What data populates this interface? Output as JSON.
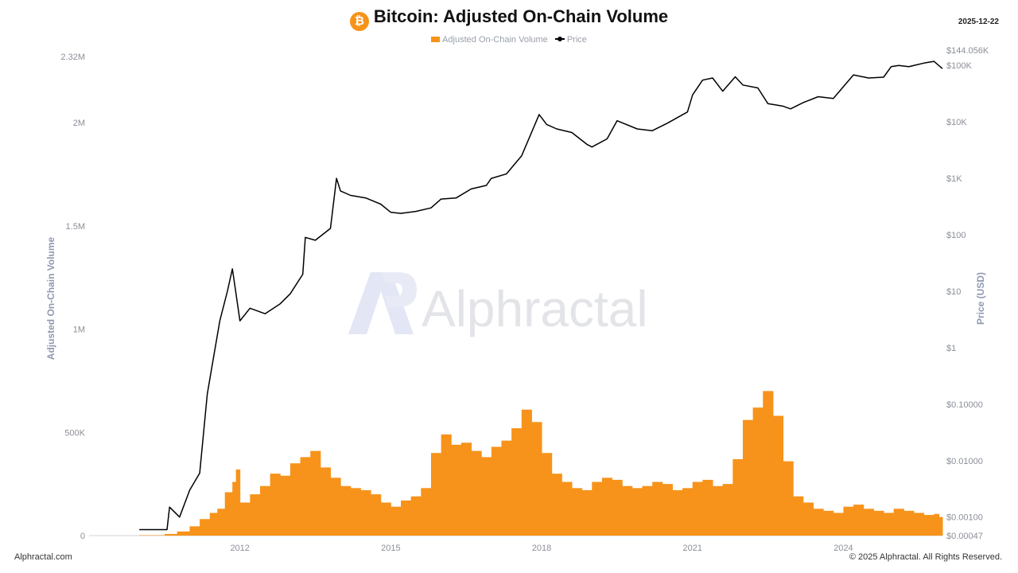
{
  "header": {
    "title": "Bitcoin: Adjusted On-Chain Volume",
    "date": "2025-12-22",
    "icon": "bitcoin-icon",
    "icon_glyph": "₿"
  },
  "watermark": {
    "text": "Alphractal"
  },
  "footer": {
    "left": "Alphractal.com",
    "right": "© 2025 Alphractal. All Rights Reserved."
  },
  "colors": {
    "volume": "#f7931a",
    "price": "#000000"
  },
  "chart_data": {
    "type": "bar",
    "title": "Bitcoin: Adjusted On-Chain Volume",
    "legend": {
      "placement": "top-center",
      "entries": [
        "Adjusted On-Chain Volume",
        "Price"
      ]
    },
    "grid": false,
    "x_range": [
      2009.0,
      2025.97
    ],
    "x_ticks": [
      "2012",
      "2015",
      "2018",
      "2021",
      "2024"
    ],
    "x_tick_values": [
      2012,
      2015,
      2018,
      2021,
      2024
    ],
    "y_left": {
      "label": "Adjusted On-Chain Volume",
      "range": [
        0,
        2320000
      ],
      "ticks": [
        {
          "value": 0,
          "label": "0"
        },
        {
          "value": 500000,
          "label": "500K"
        },
        {
          "value": 1000000,
          "label": "1M"
        },
        {
          "value": 1500000,
          "label": "1.5M"
        },
        {
          "value": 2000000,
          "label": "2M"
        },
        {
          "value": 2320000,
          "label": "2.32M"
        }
      ]
    },
    "y_right": {
      "label": "Price (USD)",
      "scale": "log",
      "range": [
        0.00047,
        144056
      ],
      "ticks": [
        {
          "value": 0.00047,
          "label": "$0.00047"
        },
        {
          "value": 0.001,
          "label": "$0.00100"
        },
        {
          "value": 0.01,
          "label": "$0.01000"
        },
        {
          "value": 0.1,
          "label": "$0.10000"
        },
        {
          "value": 1,
          "label": "$1"
        },
        {
          "value": 10,
          "label": "$10"
        },
        {
          "value": 100,
          "label": "$100"
        },
        {
          "value": 1000,
          "label": "$1K"
        },
        {
          "value": 10000,
          "label": "$10K"
        },
        {
          "value": 100000,
          "label": "$100K"
        },
        {
          "value": 144056,
          "label": "$144.056K"
        }
      ]
    },
    "series": [
      {
        "name": "Adjusted On-Chain Volume",
        "type": "bar",
        "axis": "left",
        "x": [
          2010.0,
          2010.5,
          2010.75,
          2011.0,
          2011.2,
          2011.4,
          2011.55,
          2011.7,
          2011.85,
          2011.92,
          2012.0,
          2012.2,
          2012.4,
          2012.6,
          2012.8,
          2013.0,
          2013.2,
          2013.4,
          2013.6,
          2013.8,
          2014.0,
          2014.2,
          2014.4,
          2014.6,
          2014.8,
          2015.0,
          2015.2,
          2015.4,
          2015.6,
          2015.8,
          2016.0,
          2016.2,
          2016.4,
          2016.6,
          2016.8,
          2017.0,
          2017.2,
          2017.4,
          2017.6,
          2017.8,
          2018.0,
          2018.2,
          2018.4,
          2018.6,
          2018.8,
          2019.0,
          2019.2,
          2019.4,
          2019.6,
          2019.8,
          2020.0,
          2020.2,
          2020.4,
          2020.6,
          2020.8,
          2021.0,
          2021.2,
          2021.4,
          2021.6,
          2021.8,
          2022.0,
          2022.2,
          2022.4,
          2022.6,
          2022.8,
          2023.0,
          2023.2,
          2023.4,
          2023.6,
          2023.8,
          2024.0,
          2024.2,
          2024.4,
          2024.6,
          2024.8,
          2025.0,
          2025.2,
          2025.4,
          2025.6,
          2025.8,
          2025.9
        ],
        "values": [
          2000,
          8000,
          20000,
          45000,
          80000,
          110000,
          130000,
          210000,
          260000,
          320000,
          160000,
          200000,
          240000,
          300000,
          290000,
          350000,
          380000,
          410000,
          330000,
          280000,
          240000,
          230000,
          220000,
          200000,
          160000,
          140000,
          170000,
          190000,
          230000,
          400000,
          490000,
          440000,
          450000,
          410000,
          380000,
          430000,
          460000,
          520000,
          610000,
          550000,
          400000,
          300000,
          260000,
          230000,
          220000,
          260000,
          280000,
          270000,
          240000,
          230000,
          240000,
          260000,
          250000,
          220000,
          230000,
          260000,
          270000,
          240000,
          250000,
          370000,
          560000,
          620000,
          700000,
          580000,
          360000,
          190000,
          160000,
          130000,
          120000,
          110000,
          140000,
          150000,
          130000,
          120000,
          110000,
          130000,
          120000,
          110000,
          100000,
          105000,
          90000
        ]
      },
      {
        "name": "Price",
        "type": "line",
        "axis": "right",
        "x": [
          2010.0,
          2010.2,
          2010.35,
          2010.55,
          2010.6,
          2010.8,
          2011.0,
          2011.2,
          2011.35,
          2011.45,
          2011.6,
          2011.75,
          2011.85,
          2012.0,
          2012.2,
          2012.5,
          2012.8,
          2013.0,
          2013.25,
          2013.3,
          2013.5,
          2013.8,
          2013.92,
          2014.0,
          2014.2,
          2014.5,
          2014.8,
          2015.0,
          2015.2,
          2015.5,
          2015.8,
          2016.0,
          2016.3,
          2016.6,
          2016.9,
          2017.0,
          2017.3,
          2017.6,
          2017.95,
          2018.1,
          2018.3,
          2018.6,
          2018.9,
          2019.0,
          2019.3,
          2019.5,
          2019.9,
          2020.2,
          2020.5,
          2020.9,
          2021.0,
          2021.2,
          2021.4,
          2021.6,
          2021.85,
          2022.0,
          2022.3,
          2022.5,
          2022.8,
          2022.95,
          2023.2,
          2023.5,
          2023.8,
          2024.0,
          2024.2,
          2024.5,
          2024.8,
          2024.95,
          2025.1,
          2025.3,
          2025.6,
          2025.8,
          2025.97
        ],
        "values": [
          0.0006,
          0.0006,
          0.0006,
          0.0006,
          0.0015,
          0.001,
          0.003,
          0.006,
          0.15,
          0.5,
          3,
          10,
          25,
          3,
          5,
          4,
          6,
          9,
          20,
          90,
          80,
          130,
          1000,
          600,
          500,
          450,
          350,
          250,
          240,
          260,
          300,
          430,
          450,
          650,
          750,
          1000,
          1200,
          2500,
          13500,
          9000,
          7500,
          6500,
          4000,
          3600,
          5000,
          10500,
          7500,
          7000,
          9500,
          15000,
          30000,
          55000,
          60000,
          35000,
          63000,
          45000,
          40000,
          21000,
          19000,
          17000,
          22000,
          28000,
          26000,
          42000,
          68000,
          60000,
          62000,
          95000,
          100000,
          95000,
          110000,
          118000,
          88000
        ]
      }
    ]
  }
}
